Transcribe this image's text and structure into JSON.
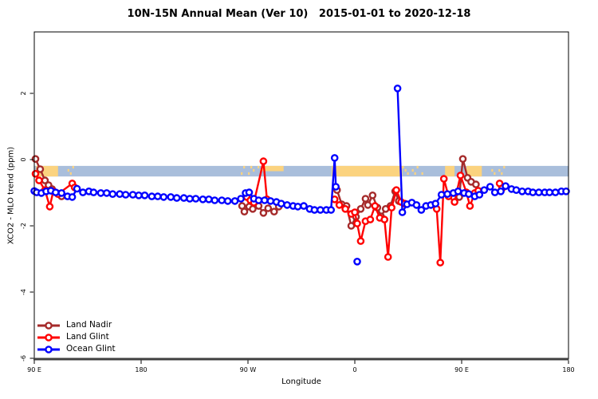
{
  "chart_data": {
    "type": "line",
    "title": "10N-15N Annual Mean (Ver 10)   2015-01-01 to 2020-12-18",
    "xlabel": "Longitude",
    "ylabel": "XCO2 - MLO trend (ppm)",
    "xlim": [
      90,
      540
    ],
    "ylim": [
      -6.05,
      3.86
    ],
    "grid": false,
    "legend_position": "bottom-left-inside",
    "x_axis": {
      "ticks": [
        {
          "lon": 90,
          "label": "90 E"
        },
        {
          "lon": 180,
          "label": "180"
        },
        {
          "lon": 270,
          "label": "90 W"
        },
        {
          "lon": 360,
          "label": "0"
        },
        {
          "lon": 450,
          "label": "90 E"
        },
        {
          "lon": 540,
          "label": "180"
        }
      ]
    },
    "y_axis": {
      "ticks": [
        {
          "v": 2,
          "label": "2"
        },
        {
          "v": 0,
          "label": "0"
        },
        {
          "v": -2,
          "label": "-2"
        },
        {
          "v": -4,
          "label": "-4"
        },
        {
          "v": -6,
          "label": "-6"
        }
      ]
    },
    "legend": [
      {
        "id": "land-nadir",
        "label": "Land Nadir",
        "color": "#A52A2A"
      },
      {
        "id": "land-glint",
        "label": "Land Glint",
        "color": "#FF0000"
      },
      {
        "id": "ocean-glint",
        "label": "Ocean Glint",
        "color": "#0000FF"
      }
    ],
    "colors": {
      "band_ocean": "#a9bedb",
      "band_land": "#fbd37f",
      "axis_line": "#3f3f3f",
      "border": "#000000"
    },
    "map_band": {
      "value_top": -0.19,
      "value_bottom": -0.51,
      "land_patches": [
        {
          "from": 91.5,
          "to": 110,
          "part": "full"
        },
        {
          "from": 118,
          "to": 124.5,
          "part": "speckle"
        },
        {
          "from": 264,
          "to": 281,
          "part": "speckle"
        },
        {
          "from": 281,
          "to": 300,
          "part": "top"
        },
        {
          "from": 340.5,
          "to": 400,
          "part": "full"
        },
        {
          "from": 400,
          "to": 417,
          "part": "speckle"
        },
        {
          "from": 436,
          "to": 444,
          "part": "full"
        },
        {
          "from": 454,
          "to": 467,
          "part": "full"
        },
        {
          "from": 475,
          "to": 486,
          "part": "speckle"
        }
      ]
    },
    "series": [
      {
        "id": "land-nadir",
        "name": "Land Nadir",
        "color": "#A52A2A",
        "segments": [
          [
            [
              91,
              0.02
            ],
            [
              95,
              -0.29
            ],
            [
              99,
              -0.63
            ],
            [
              102,
              -0.77
            ],
            [
              105,
              -0.89
            ],
            [
              109,
              -1.01
            ],
            [
              113,
              -1.11
            ]
          ],
          [
            [
              265,
              -1.4
            ],
            [
              267,
              -1.57
            ],
            [
              271,
              -1.42
            ],
            [
              274,
              -1.49
            ],
            [
              279,
              -1.4
            ],
            [
              283,
              -1.61
            ],
            [
              287,
              -1.47
            ],
            [
              292,
              -1.57
            ],
            [
              296,
              -1.42
            ]
          ],
          [
            [
              345,
              -0.92
            ],
            [
              349,
              -1.35
            ],
            [
              353,
              -1.4
            ],
            [
              357,
              -2.0
            ],
            [
              361,
              -1.73
            ],
            [
              365,
              -1.49
            ],
            [
              369,
              -1.18
            ],
            [
              371,
              -1.37
            ],
            [
              375,
              -1.08
            ],
            [
              379,
              -1.45
            ],
            [
              382,
              -1.71
            ],
            [
              386,
              -1.49
            ],
            [
              390,
              -1.4
            ],
            [
              394,
              -0.96
            ],
            [
              397,
              -1.25
            ]
          ],
          [
            [
              448,
              -1.13
            ],
            [
              451,
              0.02
            ],
            [
              455,
              -0.55
            ],
            [
              458,
              -0.67
            ],
            [
              462,
              -0.75
            ],
            [
              464,
              -0.94
            ]
          ]
        ]
      },
      {
        "id": "land-glint",
        "name": "Land Glint",
        "color": "#FF0000",
        "segments": [
          [
            [
              91,
              -0.43
            ],
            [
              94,
              -0.63
            ],
            [
              99,
              -0.92
            ],
            [
              103,
              -1.42
            ],
            [
              106,
              -0.96
            ],
            [
              110,
              -1.04
            ],
            [
              122,
              -0.72
            ],
            [
              124,
              -0.84
            ]
          ],
          [
            [
              269,
              -1.13
            ],
            [
              272,
              -1.23
            ],
            [
              275,
              -1.3
            ],
            [
              283,
              -0.05
            ],
            [
              286,
              -1.2
            ]
          ],
          [
            [
              343,
              -1.2
            ],
            [
              347,
              -1.37
            ],
            [
              352,
              -1.49
            ],
            [
              357,
              -1.64
            ],
            [
              360,
              -1.59
            ],
            [
              362,
              -1.93
            ],
            [
              365,
              -2.46
            ],
            [
              369,
              -1.86
            ],
            [
              373,
              -1.81
            ],
            [
              377,
              -1.4
            ],
            [
              381,
              -1.76
            ],
            [
              385,
              -1.81
            ],
            [
              388,
              -2.94
            ],
            [
              391,
              -1.45
            ],
            [
              395,
              -0.92
            ],
            [
              399,
              -1.28
            ],
            [
              402,
              -1.33
            ]
          ],
          [
            [
              429,
              -1.49
            ],
            [
              432,
              -3.11
            ],
            [
              435,
              -0.58
            ],
            [
              439,
              -1.11
            ],
            [
              444,
              -1.28
            ],
            [
              449,
              -0.48
            ],
            [
              454,
              -0.99
            ],
            [
              457,
              -1.4
            ],
            [
              461,
              -1.01
            ],
            [
              464,
              -0.94
            ]
          ],
          [
            [
              482,
              -0.72
            ],
            [
              484,
              -0.87
            ]
          ]
        ]
      },
      {
        "id": "ocean-glint",
        "name": "Ocean Glint",
        "color": "#0000FF",
        "segments": [
          [
            [
              90,
              -0.95
            ],
            [
              92,
              -0.99
            ],
            [
              96,
              -1.01
            ],
            [
              100,
              -0.96
            ],
            [
              104,
              -0.94
            ],
            [
              108,
              -0.99
            ],
            [
              113,
              -1.01
            ],
            [
              118,
              -1.11
            ],
            [
              122,
              -1.13
            ],
            [
              126,
              -0.88
            ],
            [
              131,
              -0.99
            ],
            [
              136,
              -0.96
            ],
            [
              140,
              -0.99
            ],
            [
              146,
              -1.01
            ],
            [
              151,
              -1.01
            ],
            [
              156,
              -1.04
            ],
            [
              162,
              -1.04
            ],
            [
              167,
              -1.06
            ],
            [
              173,
              -1.06
            ],
            [
              178,
              -1.08
            ],
            [
              183,
              -1.08
            ],
            [
              189,
              -1.11
            ],
            [
              194,
              -1.11
            ],
            [
              199,
              -1.13
            ],
            [
              205,
              -1.13
            ],
            [
              210,
              -1.16
            ],
            [
              216,
              -1.16
            ],
            [
              221,
              -1.18
            ],
            [
              226,
              -1.18
            ],
            [
              232,
              -1.2
            ],
            [
              237,
              -1.2
            ],
            [
              242,
              -1.23
            ],
            [
              248,
              -1.23
            ],
            [
              253,
              -1.25
            ],
            [
              259,
              -1.25
            ],
            [
              264,
              -1.18
            ],
            [
              268,
              -1.01
            ],
            [
              271,
              -0.99
            ],
            [
              275,
              -1.18
            ],
            [
              279,
              -1.23
            ],
            [
              284,
              -1.23
            ],
            [
              289,
              -1.25
            ],
            [
              294,
              -1.28
            ],
            [
              298,
              -1.33
            ],
            [
              303,
              -1.37
            ],
            [
              308,
              -1.4
            ],
            [
              312,
              -1.42
            ],
            [
              317,
              -1.4
            ],
            [
              322,
              -1.49
            ],
            [
              326,
              -1.52
            ],
            [
              331,
              -1.52
            ],
            [
              336,
              -1.52
            ],
            [
              340,
              -1.52
            ],
            [
              343,
              0.05
            ],
            [
              344,
              -0.82
            ]
          ],
          [
            [
              362,
              -3.08
            ]
          ],
          [
            [
              396,
              2.15
            ],
            [
              400,
              -1.59
            ],
            [
              404,
              -1.35
            ],
            [
              408,
              -1.3
            ],
            [
              412,
              -1.37
            ],
            [
              416,
              -1.52
            ],
            [
              420,
              -1.4
            ],
            [
              424,
              -1.37
            ],
            [
              428,
              -1.33
            ],
            [
              433,
              -1.06
            ],
            [
              438,
              -1.04
            ],
            [
              443,
              -1.01
            ],
            [
              447,
              -0.96
            ],
            [
              452,
              -1.01
            ],
            [
              456,
              -1.04
            ],
            [
              461,
              -1.11
            ],
            [
              465,
              -1.06
            ],
            [
              469,
              -0.92
            ],
            [
              474,
              -0.82
            ],
            [
              478,
              -0.99
            ],
            [
              483,
              -0.96
            ],
            [
              487,
              -0.8
            ],
            [
              492,
              -0.89
            ],
            [
              496,
              -0.92
            ],
            [
              501,
              -0.96
            ],
            [
              506,
              -0.96
            ],
            [
              510,
              -0.99
            ],
            [
              515,
              -0.99
            ],
            [
              520,
              -0.99
            ],
            [
              524,
              -0.99
            ],
            [
              529,
              -0.99
            ],
            [
              534,
              -0.96
            ],
            [
              538,
              -0.96
            ]
          ]
        ]
      }
    ]
  }
}
